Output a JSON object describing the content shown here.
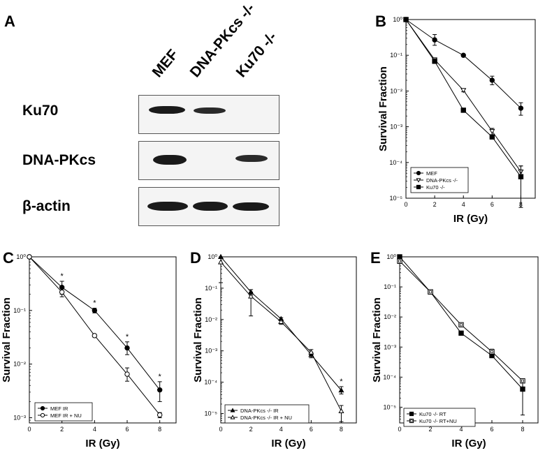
{
  "panel_a": {
    "letter": "A",
    "lanes": [
      "MEF",
      "DNA-PKcs -/-",
      "Ku70 -/-"
    ],
    "rows": [
      "Ku70",
      "DNA-PKcs",
      "β-actin"
    ]
  },
  "chart_data": [
    {
      "panel": "B",
      "type": "scatter",
      "xlabel": "IR (Gy)",
      "ylabel": "Survival Fraction",
      "yscale": "log",
      "xlim": [
        0,
        9
      ],
      "ylim": [
        1e-05,
        1
      ],
      "xticks": [
        "0",
        "2",
        "4",
        "6",
        "8"
      ],
      "yticks": [
        "10⁰",
        "10⁻¹",
        "10⁻²",
        "10⁻³",
        "10⁻⁴",
        "10⁻⁵"
      ],
      "legend_position": "bottom-left",
      "series": [
        {
          "name": "MEF",
          "marker": "filled-circle",
          "x": [
            0,
            2,
            4,
            6,
            8
          ],
          "y": [
            1,
            0.27,
            0.1,
            0.02,
            0.0033
          ],
          "err_lo": [
            1,
            0.19,
            0.092,
            0.015,
            0.0021
          ],
          "err_hi": [
            1,
            0.38,
            0.108,
            0.026,
            0.0047
          ]
        },
        {
          "name": "DNA-PKcs -/-",
          "marker": "open-triangle-down",
          "x": [
            0,
            2,
            4,
            6,
            8
          ],
          "y": [
            1,
            0.075,
            0.0105,
            0.00075,
            5.5e-05
          ],
          "err_lo": [
            1,
            0.065,
            0.0095,
            0.0006,
            4e-05
          ],
          "err_hi": [
            1,
            0.085,
            0.0115,
            0.0009,
            8e-05
          ]
        },
        {
          "name": "Ku70 -/-",
          "marker": "filled-square",
          "x": [
            0,
            2,
            4,
            6,
            8
          ],
          "y": [
            1,
            0.068,
            0.0029,
            0.00052,
            4e-05
          ],
          "err_lo": [
            1,
            0.06,
            0.0027,
            0.00045,
            5.5e-06
          ],
          "err_hi": [
            1,
            0.076,
            0.0031,
            0.0006,
            8e-05
          ]
        }
      ]
    },
    {
      "panel": "C",
      "type": "scatter",
      "xlabel": "IR (Gy)",
      "ylabel": "Survival Fraction",
      "yscale": "log",
      "xlim": [
        0,
        9
      ],
      "ylim": [
        0.0008,
        1
      ],
      "xticks": [
        "0",
        "2",
        "4",
        "6",
        "8"
      ],
      "yticks": [
        "10⁰",
        "10⁻¹",
        "10⁻²",
        "10⁻³"
      ],
      "legend_position": "bottom-left",
      "annotations": [
        "*",
        "*",
        "*",
        "*"
      ],
      "annotation_x": [
        2,
        4,
        6,
        8
      ],
      "series": [
        {
          "name": "MEF IR",
          "marker": "filled-circle",
          "x": [
            0,
            2,
            4,
            6,
            8
          ],
          "y": [
            1,
            0.27,
            0.1,
            0.02,
            0.0033
          ],
          "err_lo": [
            1,
            0.2,
            0.09,
            0.015,
            0.002
          ],
          "err_hi": [
            1,
            0.35,
            0.11,
            0.026,
            0.0047
          ]
        },
        {
          "name": "MEF IR + NU",
          "marker": "open-circle",
          "x": [
            0,
            2,
            4,
            6,
            8
          ],
          "y": [
            1,
            0.22,
            0.034,
            0.0065,
            0.00113
          ],
          "err_lo": [
            1,
            0.18,
            0.032,
            0.0048,
            0.001
          ],
          "err_hi": [
            1,
            0.26,
            0.036,
            0.0085,
            0.00125
          ]
        }
      ]
    },
    {
      "panel": "D",
      "type": "scatter",
      "xlabel": "IR (Gy)",
      "ylabel": "Survival Fraction",
      "yscale": "log",
      "xlim": [
        0,
        9
      ],
      "ylim": [
        5e-06,
        1
      ],
      "xticks": [
        "0",
        "2",
        "4",
        "6",
        "8"
      ],
      "yticks": [
        "10⁰",
        "10⁻¹",
        "10⁻²",
        "10⁻³",
        "10⁻⁴",
        "10⁻⁵"
      ],
      "legend_position": "bottom-left",
      "annotations": [
        "*"
      ],
      "annotation_x": [
        8
      ],
      "series": [
        {
          "name": "DNA-PKcs -/- IR",
          "marker": "filled-triangle-up",
          "x": [
            0,
            2,
            4,
            6,
            8
          ],
          "y": [
            1,
            0.075,
            0.0105,
            0.00075,
            5.5e-05
          ],
          "err_lo": [
            1,
            0.06,
            0.0095,
            0.0006,
            4.2e-05
          ],
          "err_hi": [
            1,
            0.09,
            0.0115,
            0.0009,
            7.2e-05
          ]
        },
        {
          "name": "DNA-PKcs -/- IR + NU",
          "marker": "open-triangle-up",
          "x": [
            0,
            2,
            4,
            6,
            8
          ],
          "y": [
            0.68,
            0.055,
            0.0085,
            0.0009,
            1.2e-05
          ],
          "err_lo": [
            0.15,
            0.013,
            0.007,
            0.00075,
            5.5e-06
          ],
          "err_hi": [
            1,
            0.075,
            0.01,
            0.0011,
            1.8e-05
          ]
        }
      ]
    },
    {
      "panel": "E",
      "type": "scatter",
      "xlabel": "IR (Gy)",
      "ylabel": "Survival Fraction",
      "yscale": "log",
      "xlim": [
        0,
        9
      ],
      "ylim": [
        3e-06,
        1
      ],
      "xticks": [
        "0",
        "2",
        "4",
        "6",
        "8"
      ],
      "yticks": [
        "10⁰",
        "10⁻¹",
        "10⁻²",
        "10⁻³",
        "10⁻⁴",
        "10⁻⁵"
      ],
      "legend_position": "bottom-left",
      "series": [
        {
          "name": "Ku70 -/- RT",
          "marker": "filled-square",
          "x": [
            0,
            2,
            4,
            6,
            8
          ],
          "y": [
            1,
            0.068,
            0.0029,
            0.00052,
            4e-05
          ],
          "err_lo": [
            1,
            0.06,
            0.0027,
            0.00045,
            5.5e-06
          ],
          "err_hi": [
            1,
            0.076,
            0.0031,
            0.0006,
            8e-05
          ]
        },
        {
          "name": "Ku70 -/- RT+NU",
          "marker": "open-square",
          "x": [
            0,
            2,
            4,
            6,
            8
          ],
          "y": [
            0.72,
            0.068,
            0.0055,
            0.0007,
            7.5e-05
          ],
          "err_lo": [
            0.6,
            0.06,
            0.005,
            0.0006,
            7e-05
          ],
          "err_hi": [
            0.85,
            0.076,
            0.006,
            0.00085,
            8e-05
          ]
        }
      ]
    }
  ]
}
